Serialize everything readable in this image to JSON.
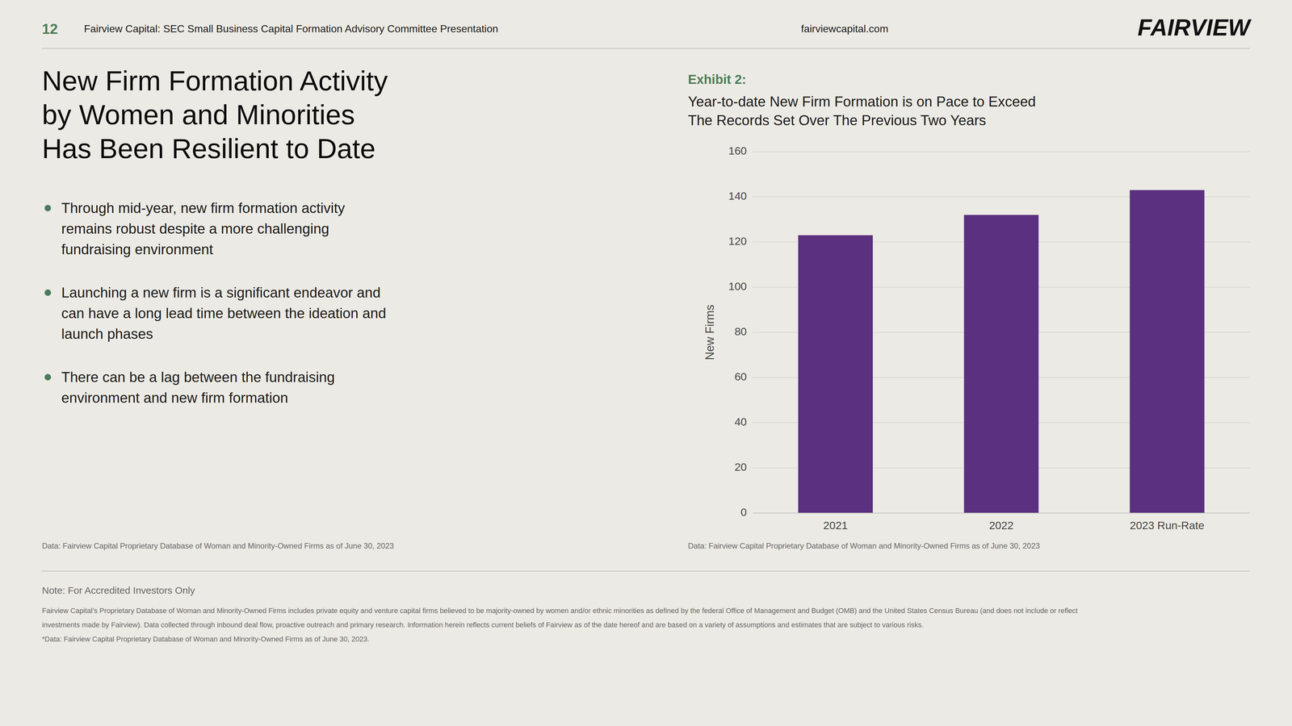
{
  "page": {
    "header_num": "12",
    "header_text": "Fairview Capital: SEC Small Business Capital Formation Advisory Committee Presentation",
    "header_right": "fairviewcapital.com",
    "logo_text": "FAIRVIEW",
    "slide_title": [
      "New Firm Formation Activity",
      "by Women and Minorities",
      "Has Been Resilient to Date"
    ],
    "bullets": [
      "Through mid-year, new firm formation activity\nremains robust despite a more challenging\nfundraising environment",
      "Launching a new firm is a significant endeavor and\ncan have a long lead time between the ideation and\nlaunch phases",
      "There can be a lag between the fundraising\nenvironment and new firm formation"
    ],
    "data_source_left": "Data: Fairview Capital Proprietary Database of Woman and Minority-Owned Firms as of June 30, 2023",
    "exhibit_label": "Exhibit 2:",
    "footer_note": "Note: For Accredited Investors Only",
    "footer_lines": [
      "Fairview Capital’s Proprietary Database of Woman and Minority-Owned Firms includes private equity and venture capital firms believed to be majority-owned by women and/or ethnic minorities as defined by the federal Office of Management and Budget (OMB) and the United States Census Bureau (and does not include or reflect",
      "investments made by Fairview). Data collected through inbound deal flow, proactive outreach and primary research. Information herein reflects current beliefs of Fairview as of the date hereof and are based on a variety of assumptions and estimates that are subject to various risks.",
      "*Data: Fairview Capital Proprietary Database of Woman and Minority-Owned Firms as of June 30, 2023."
    ]
  },
  "chart_data": {
    "type": "bar",
    "title": "Year-to-date New Firm Formation is on Pace to Exceed\nThe Records Set Over The Previous Two Years",
    "categories": [
      "2021",
      "2022",
      "2023 Run-Rate"
    ],
    "values": [
      123,
      132,
      143
    ],
    "color": "#5b3080",
    "y_label": "New Firms",
    "ylim": [
      0,
      160
    ],
    "yticks": [
      0,
      20,
      40,
      60,
      80,
      100,
      120,
      140,
      160
    ],
    "grid": true,
    "annotations": [
      "Data: Fairview Capital Proprietary Database of Woman and Minority-Owned Firms as of June 30, 2023"
    ]
  }
}
